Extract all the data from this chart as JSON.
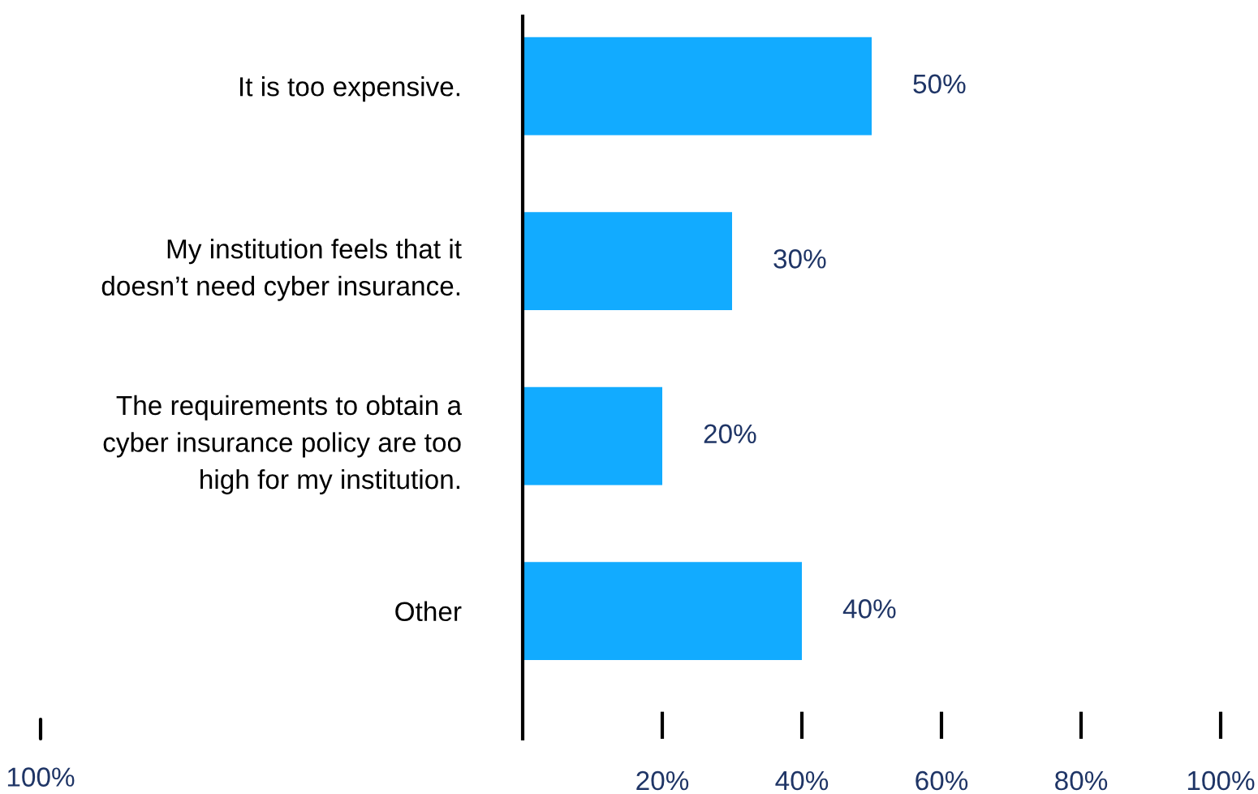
{
  "chart_data": {
    "type": "bar",
    "orientation": "horizontal",
    "categories": [
      "It is too expensive.",
      "My institution feels that it\ndoesn’t need cyber insurance.",
      "The requirements to obtain a\ncyber insurance policy are too\nhigh for my institution.",
      "Other"
    ],
    "values": [
      50,
      30,
      20,
      40
    ],
    "color": "#12abff",
    "value_labels": [
      "50%",
      "30%",
      "20%",
      "40%"
    ],
    "xlim": [
      0,
      100
    ],
    "annotations": [
      "100%"
    ],
    "xticks": [
      {
        "value": 20,
        "label": "20%"
      },
      {
        "value": 40,
        "label": "40%"
      },
      {
        "value": 60,
        "label": "60%"
      },
      {
        "value": 80,
        "label": "80%"
      },
      {
        "value": 100,
        "label": "100%"
      }
    ],
    "grid": false,
    "legend": false
  }
}
